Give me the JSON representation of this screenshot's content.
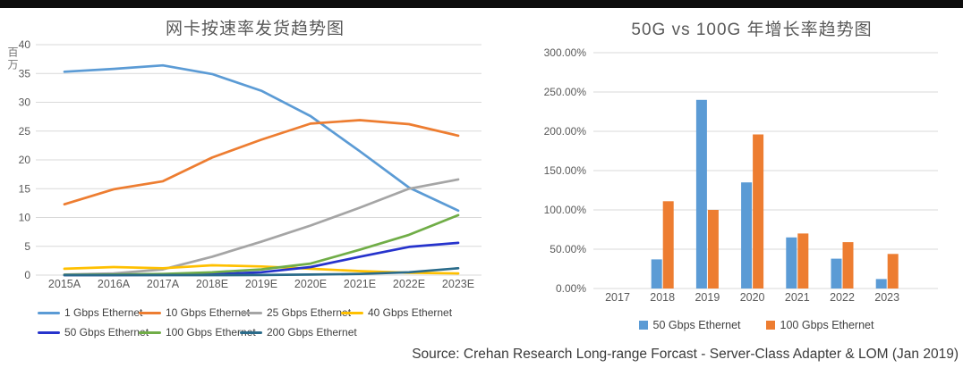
{
  "page": {
    "source_note": "Source: Crehan Research Long-range Forcast - Server-Class Adapter & LOM (Jan 2019)"
  },
  "chart_data": [
    {
      "type": "line",
      "title": "网卡按速率发货趋势图",
      "xlabel": "",
      "ylabel": "百万",
      "categories": [
        "2015A",
        "2016A",
        "2017A",
        "2018E",
        "2019E",
        "2020E",
        "2021E",
        "2022E",
        "2023E"
      ],
      "ylim": [
        0,
        40
      ],
      "ytick_step": 5,
      "ytick_labels": [
        "0",
        "5",
        "10",
        "15",
        "20",
        "25",
        "30",
        "35",
        "40"
      ],
      "grid": true,
      "legend_position": "bottom",
      "series": [
        {
          "name": "1 Gbps Ethernet",
          "color": "#5B9BD5",
          "values": [
            35.3,
            35.8,
            36.4,
            34.9,
            32.0,
            27.6,
            21.5,
            15.2,
            11.2
          ]
        },
        {
          "name": "10 Gbps Ethernet",
          "color": "#ED7D31",
          "values": [
            12.3,
            14.9,
            16.3,
            20.4,
            23.5,
            26.3,
            26.9,
            26.2,
            24.2
          ]
        },
        {
          "name": "25 Gbps Ethernet",
          "color": "#A5A5A5",
          "values": [
            0.1,
            0.3,
            1.0,
            3.2,
            5.8,
            8.6,
            11.7,
            15.0,
            16.6
          ]
        },
        {
          "name": "40 Gbps Ethernet",
          "color": "#FFC000",
          "values": [
            1.1,
            1.4,
            1.2,
            1.7,
            1.5,
            1.1,
            0.7,
            0.4,
            0.3
          ]
        },
        {
          "name": "50 Gbps Ethernet",
          "color": "#2633CC",
          "values": [
            0,
            0,
            0.05,
            0.15,
            0.5,
            1.4,
            3.2,
            4.9,
            5.6
          ]
        },
        {
          "name": "100 Gbps Ethernet",
          "color": "#70AD47",
          "values": [
            0.05,
            0.1,
            0.2,
            0.5,
            1.0,
            2.0,
            4.4,
            7.0,
            10.4
          ]
        },
        {
          "name": "200 Gbps Ethernet",
          "color": "#2A6B8A",
          "values": [
            0,
            0,
            0,
            0,
            0.02,
            0.1,
            0.2,
            0.5,
            1.2
          ]
        }
      ]
    },
    {
      "type": "bar",
      "title": "50G vs 100G 年增长率趋势图",
      "xlabel": "",
      "ylabel": "",
      "categories": [
        "2017",
        "2018",
        "2019",
        "2020",
        "2021",
        "2022",
        "2023"
      ],
      "ylim": [
        0,
        300
      ],
      "ytick_step": 50,
      "ytick_labels": [
        "0.00%",
        "50.00%",
        "100.00%",
        "150.00%",
        "200.00%",
        "250.00%",
        "300.00%"
      ],
      "grid": true,
      "legend_position": "bottom",
      "series": [
        {
          "name": "50 Gbps Ethernet",
          "color": "#5B9BD5",
          "values": [
            0,
            37,
            240,
            135,
            65,
            38,
            12
          ]
        },
        {
          "name": "100 Gbps Ethernet",
          "color": "#ED7D31",
          "values": [
            0,
            111,
            100,
            196,
            70,
            59,
            44
          ]
        }
      ]
    }
  ]
}
